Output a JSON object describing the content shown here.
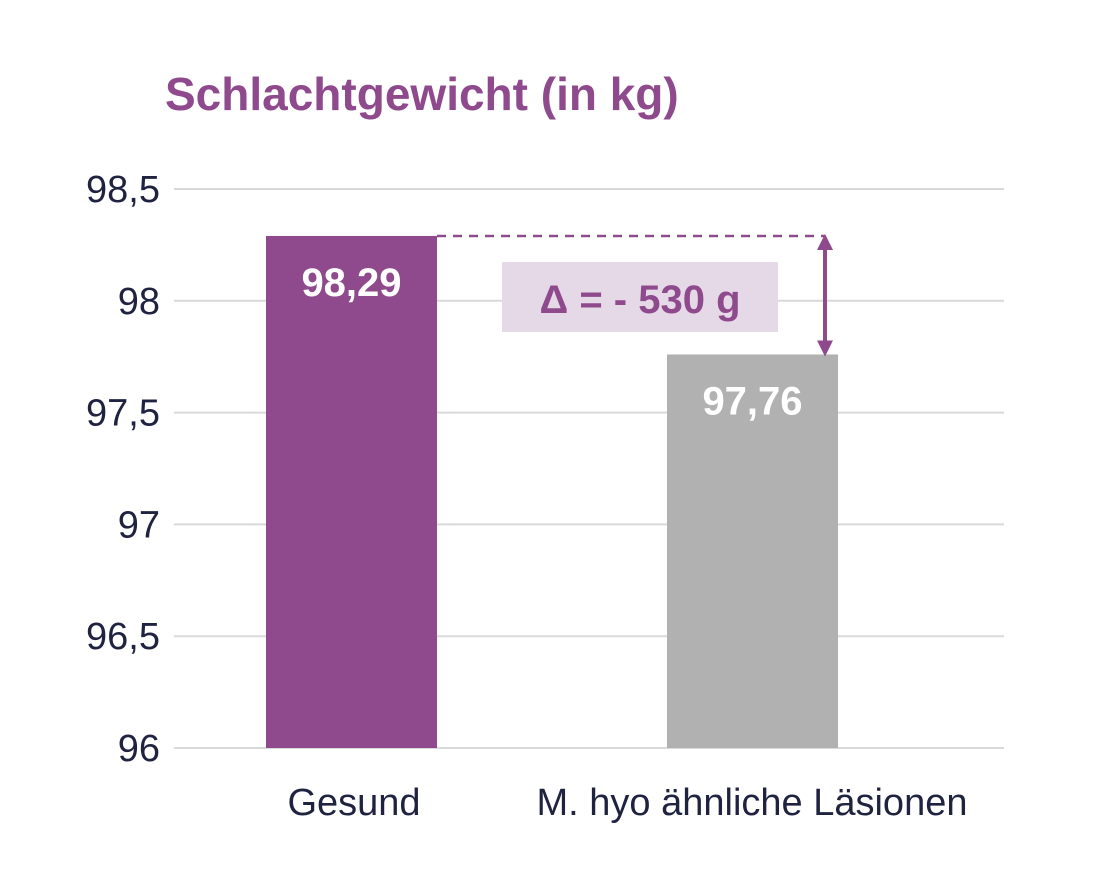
{
  "chart_data": {
    "type": "bar",
    "title": "Schlachtgewicht (in kg)",
    "categories": [
      "Gesund",
      "M. hyo ähnliche Läsionen"
    ],
    "values": [
      98.29,
      97.76
    ],
    "value_labels": [
      "98,29",
      "97,76"
    ],
    "ylim": [
      96,
      98.5
    ],
    "yticks": [
      96,
      96.5,
      97,
      97.5,
      98,
      98.5
    ],
    "ytick_labels": [
      "96",
      "96,5",
      "97",
      "97,5",
      "98",
      "98,5"
    ],
    "grid": true,
    "annotation": "Δ = - 530 g",
    "colors": {
      "title": "#8e4a8c",
      "bar_gesund": "#8e4a8c",
      "bar_laesionen": "#b1b1b1",
      "annotation_text": "#8e4a8c",
      "annotation_bg": "#e6d9e7",
      "grid": "#d9d9d9",
      "axis_text": "#1f2340",
      "value_text": "#ffffff"
    }
  }
}
